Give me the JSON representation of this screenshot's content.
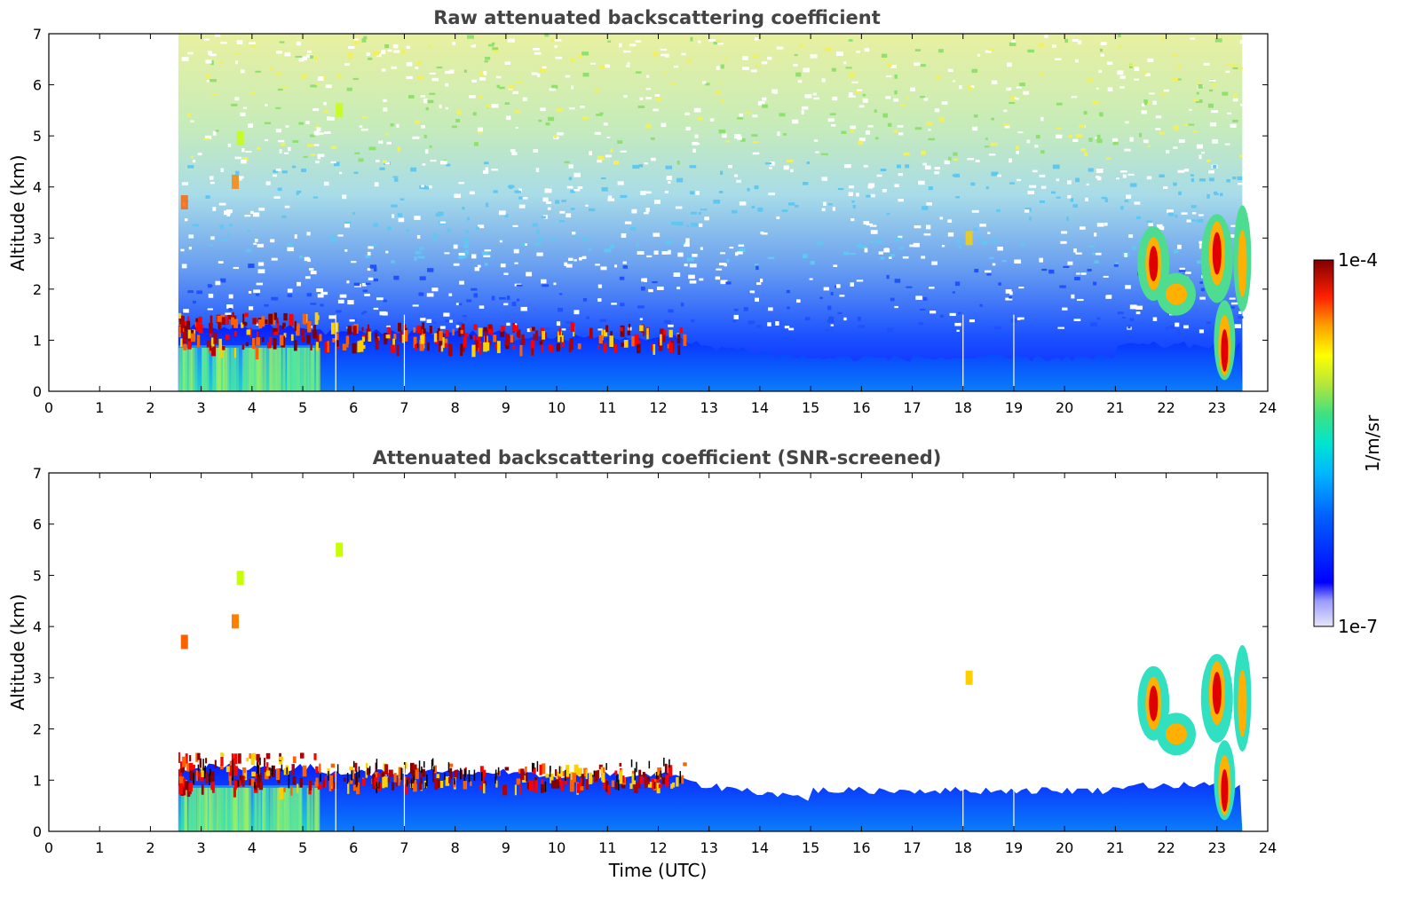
{
  "chart_data": [
    {
      "type": "heatmap",
      "title": "Raw attenuated backscattering coefficient",
      "xlabel": "",
      "ylabel": "Altitude (km)",
      "xlim": [
        0,
        24
      ],
      "ylim": [
        0,
        7
      ],
      "xticks": [
        0,
        1,
        2,
        3,
        4,
        5,
        6,
        7,
        8,
        9,
        10,
        11,
        12,
        13,
        14,
        15,
        16,
        17,
        18,
        19,
        20,
        21,
        22,
        23,
        24
      ],
      "yticks": [
        0,
        1,
        2,
        3,
        4,
        5,
        6,
        7
      ],
      "data_time_range": [
        2.55,
        23.5
      ],
      "features": [
        {
          "name": "aerosol layer",
          "time": [
            2.55,
            23.5
          ],
          "altitude_top": [
            1.0,
            0.5
          ]
        },
        {
          "name": "boundary layer top / cloud",
          "time": [
            2.55,
            12.5
          ],
          "altitude": [
            0.8,
            1.6
          ]
        },
        {
          "name": "cloud",
          "time": [
            21.5,
            23.5
          ],
          "altitude": [
            0.3,
            3.5
          ]
        },
        {
          "name": "noisy signal",
          "time": [
            2.55,
            23.5
          ],
          "altitude": [
            2.0,
            7.0
          ]
        }
      ],
      "grid": false
    },
    {
      "type": "heatmap",
      "title": "Attenuated backscattering coefficient (SNR-screened)",
      "xlabel": "Time (UTC)",
      "ylabel": "Altitude (km)",
      "xlim": [
        0,
        24
      ],
      "ylim": [
        0,
        7
      ],
      "xticks": [
        0,
        1,
        2,
        3,
        4,
        5,
        6,
        7,
        8,
        9,
        10,
        11,
        12,
        13,
        14,
        15,
        16,
        17,
        18,
        19,
        20,
        21,
        22,
        23,
        24
      ],
      "yticks": [
        0,
        1,
        2,
        3,
        4,
        5,
        6,
        7
      ],
      "data_time_range": [
        2.55,
        23.5
      ],
      "features": [
        {
          "name": "aerosol layer",
          "time": [
            2.55,
            23.5
          ],
          "altitude_top": [
            1.2,
            0.5
          ]
        },
        {
          "name": "cloud",
          "time": [
            21.5,
            23.5
          ],
          "altitude": [
            0.3,
            3.5
          ]
        },
        {
          "name": "isolated echoes",
          "time": [
            2.6,
            18.1
          ],
          "altitude": [
            2.9,
            5.5
          ]
        }
      ],
      "grid": false
    }
  ],
  "colorbar": {
    "label": "1/m/sr",
    "max_label": "1e-4",
    "min_label": "1e-7",
    "range": [
      1e-07,
      0.0001
    ],
    "scale": "log",
    "colormap": [
      "#e6e6f8",
      "#0000ff",
      "#0099ff",
      "#00e5e5",
      "#7ddc3c",
      "#ffff00",
      "#ff8000",
      "#ff0000",
      "#800000"
    ]
  }
}
